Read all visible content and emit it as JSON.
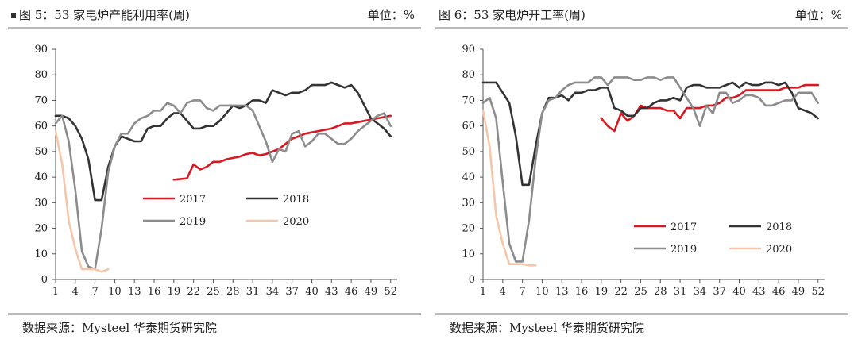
{
  "charts": [
    {
      "id": "fig5",
      "title": "图 5：53 家电炉产能利用率(周)",
      "unit": "单位：%",
      "source": "数据来源：Mysteel 华泰期货研究院",
      "chart_data": {
        "type": "line",
        "ylim": [
          0,
          90
        ],
        "yticks": [
          0,
          10,
          20,
          30,
          40,
          50,
          60,
          70,
          80,
          90
        ],
        "xlim": [
          1,
          53
        ],
        "xticks": [
          1,
          4,
          7,
          10,
          13,
          16,
          19,
          22,
          25,
          28,
          31,
          34,
          37,
          40,
          43,
          46,
          49,
          52
        ],
        "legend": "inside-lower-middle",
        "series": [
          {
            "name": "2017",
            "color": "#d71921",
            "x": [
              19,
              21,
              22,
              23,
              24,
              25,
              26,
              27,
              28,
              29,
              30,
              31,
              32,
              33,
              34,
              35,
              36,
              37,
              38,
              39,
              40,
              41,
              42,
              43,
              44,
              45,
              46,
              47,
              48,
              49,
              50,
              51,
              52
            ],
            "y": [
              39,
              39.5,
              45,
              43,
              44,
              46,
              46,
              47,
              47.5,
              48,
              49,
              49.5,
              48.5,
              49,
              50,
              51,
              53,
              55,
              56,
              57,
              57.5,
              58,
              58.5,
              59,
              60,
              61,
              61,
              61.5,
              62,
              62.5,
              63,
              63.5,
              64
            ]
          },
          {
            "name": "2018",
            "color": "#333333",
            "x": [
              1,
              2,
              3,
              4,
              5,
              6,
              7,
              8,
              9,
              10,
              11,
              12,
              13,
              14,
              15,
              16,
              17,
              18,
              19,
              20,
              21,
              22,
              23,
              24,
              25,
              26,
              27,
              28,
              29,
              30,
              31,
              32,
              33,
              34,
              35,
              36,
              37,
              38,
              39,
              40,
              41,
              42,
              43,
              44,
              45,
              46,
              47,
              48,
              49,
              50,
              51,
              52
            ],
            "y": [
              64,
              64,
              63,
              60,
              55,
              47,
              31,
              31,
              44,
              52,
              56,
              55,
              54,
              54,
              59,
              60,
              60,
              63,
              65,
              65,
              62,
              59,
              59,
              60,
              60,
              62,
              65,
              68,
              67,
              68,
              70,
              70,
              69,
              74,
              73,
              72,
              73,
              73,
              74,
              76,
              76,
              76,
              77,
              76,
              75,
              76,
              73,
              68,
              63,
              61,
              59,
              56
            ]
          },
          {
            "name": "2019",
            "color": "#8c8c8c",
            "x": [
              1,
              2,
              3,
              4,
              5,
              6,
              7,
              8,
              9,
              10,
              11,
              12,
              13,
              14,
              15,
              16,
              17,
              18,
              19,
              20,
              21,
              22,
              23,
              24,
              25,
              26,
              27,
              28,
              29,
              30,
              31,
              32,
              33,
              34,
              35,
              36,
              37,
              38,
              39,
              40,
              41,
              42,
              43,
              44,
              45,
              46,
              47,
              48,
              49,
              50,
              51,
              52
            ],
            "y": [
              61,
              64,
              54,
              35,
              11,
              5,
              4,
              20,
              42,
              52,
              57,
              57,
              61,
              63,
              64,
              66,
              66,
              69,
              68,
              65,
              69,
              70,
              70,
              67,
              66,
              68,
              68,
              68,
              68,
              68,
              66,
              60,
              54,
              46,
              51,
              50,
              57,
              58,
              52,
              54,
              57,
              57,
              55,
              53,
              53,
              55,
              58,
              60,
              62,
              64,
              65,
              60
            ]
          },
          {
            "name": "2020",
            "color": "#f5c6aa",
            "x": [
              1,
              2,
              3,
              4,
              5,
              6,
              7,
              8,
              9
            ],
            "y": [
              58,
              45,
              23,
              12,
              4,
              4,
              4,
              3,
              4
            ]
          }
        ]
      }
    },
    {
      "id": "fig6",
      "title": "图 6：53 家电炉开工率(周)",
      "unit": "单位：%",
      "source": "数据来源：Mysteel 华泰期货研究院",
      "chart_data": {
        "type": "line",
        "ylim": [
          0,
          90
        ],
        "yticks": [
          0,
          10,
          20,
          30,
          40,
          50,
          60,
          70,
          80,
          90
        ],
        "xlim": [
          1,
          53
        ],
        "xticks": [
          1,
          4,
          7,
          10,
          13,
          16,
          19,
          22,
          25,
          28,
          31,
          34,
          37,
          40,
          43,
          46,
          49,
          52
        ],
        "legend": "inside-lower-middle",
        "series": [
          {
            "name": "2017",
            "color": "#d71921",
            "x": [
              19,
              20,
              21,
              22,
              23,
              24,
              25,
              26,
              27,
              28,
              29,
              30,
              31,
              32,
              33,
              34,
              35,
              36,
              37,
              38,
              39,
              40,
              41,
              42,
              43,
              44,
              45,
              46,
              47,
              48,
              49,
              50,
              51,
              52
            ],
            "y": [
              63,
              60,
              58,
              65,
              62,
              64,
              68,
              67,
              67,
              67,
              66,
              66,
              63,
              67,
              67,
              67,
              68,
              68,
              69,
              71,
              71,
              72,
              74,
              74,
              74,
              74,
              74,
              74,
              75,
              75,
              75,
              76,
              76,
              76
            ]
          },
          {
            "name": "2018",
            "color": "#333333",
            "x": [
              1,
              2,
              3,
              4,
              5,
              6,
              7,
              8,
              9,
              10,
              11,
              12,
              13,
              14,
              15,
              16,
              17,
              18,
              19,
              20,
              21,
              22,
              23,
              24,
              25,
              26,
              27,
              28,
              29,
              30,
              31,
              32,
              33,
              34,
              35,
              36,
              37,
              38,
              39,
              40,
              41,
              42,
              43,
              44,
              45,
              46,
              47,
              48,
              49,
              50,
              51,
              52
            ],
            "y": [
              77,
              77,
              77,
              73,
              69,
              56,
              37,
              37,
              52,
              65,
              71,
              71,
              72,
              70,
              73,
              73,
              74,
              74,
              75,
              75,
              67,
              66,
              64,
              64,
              67,
              67,
              69,
              70,
              70,
              71,
              70,
              75,
              76,
              76,
              75,
              75,
              75,
              76,
              77,
              75,
              77,
              76,
              76,
              77,
              77,
              76,
              77,
              73,
              67,
              66,
              65,
              63
            ]
          },
          {
            "name": "2019",
            "color": "#8c8c8c",
            "x": [
              1,
              2,
              3,
              4,
              5,
              6,
              7,
              8,
              9,
              10,
              11,
              12,
              13,
              14,
              15,
              16,
              17,
              18,
              19,
              20,
              21,
              22,
              23,
              24,
              25,
              26,
              27,
              28,
              29,
              30,
              31,
              32,
              33,
              34,
              35,
              36,
              37,
              38,
              39,
              40,
              41,
              42,
              43,
              44,
              45,
              46,
              47,
              48,
              49,
              50,
              51,
              52
            ],
            "y": [
              69,
              71,
              63,
              38,
              14,
              7,
              7,
              23,
              47,
              65,
              70,
              71,
              74,
              76,
              77,
              77,
              77,
              79,
              79,
              76,
              79,
              79,
              79,
              78,
              78,
              79,
              79,
              78,
              79,
              79,
              75,
              71,
              67,
              60,
              68,
              65,
              73,
              73,
              69,
              70,
              72,
              72,
              71,
              68,
              68,
              69,
              70,
              70,
              73,
              73,
              73,
              69
            ]
          },
          {
            "name": "2020",
            "color": "#f5c6aa",
            "x": [
              1,
              2,
              3,
              4,
              5,
              6,
              7,
              8,
              9
            ],
            "y": [
              66,
              52,
              25,
              14,
              6,
              6,
              6,
              5.5,
              5.5
            ]
          }
        ]
      }
    }
  ]
}
